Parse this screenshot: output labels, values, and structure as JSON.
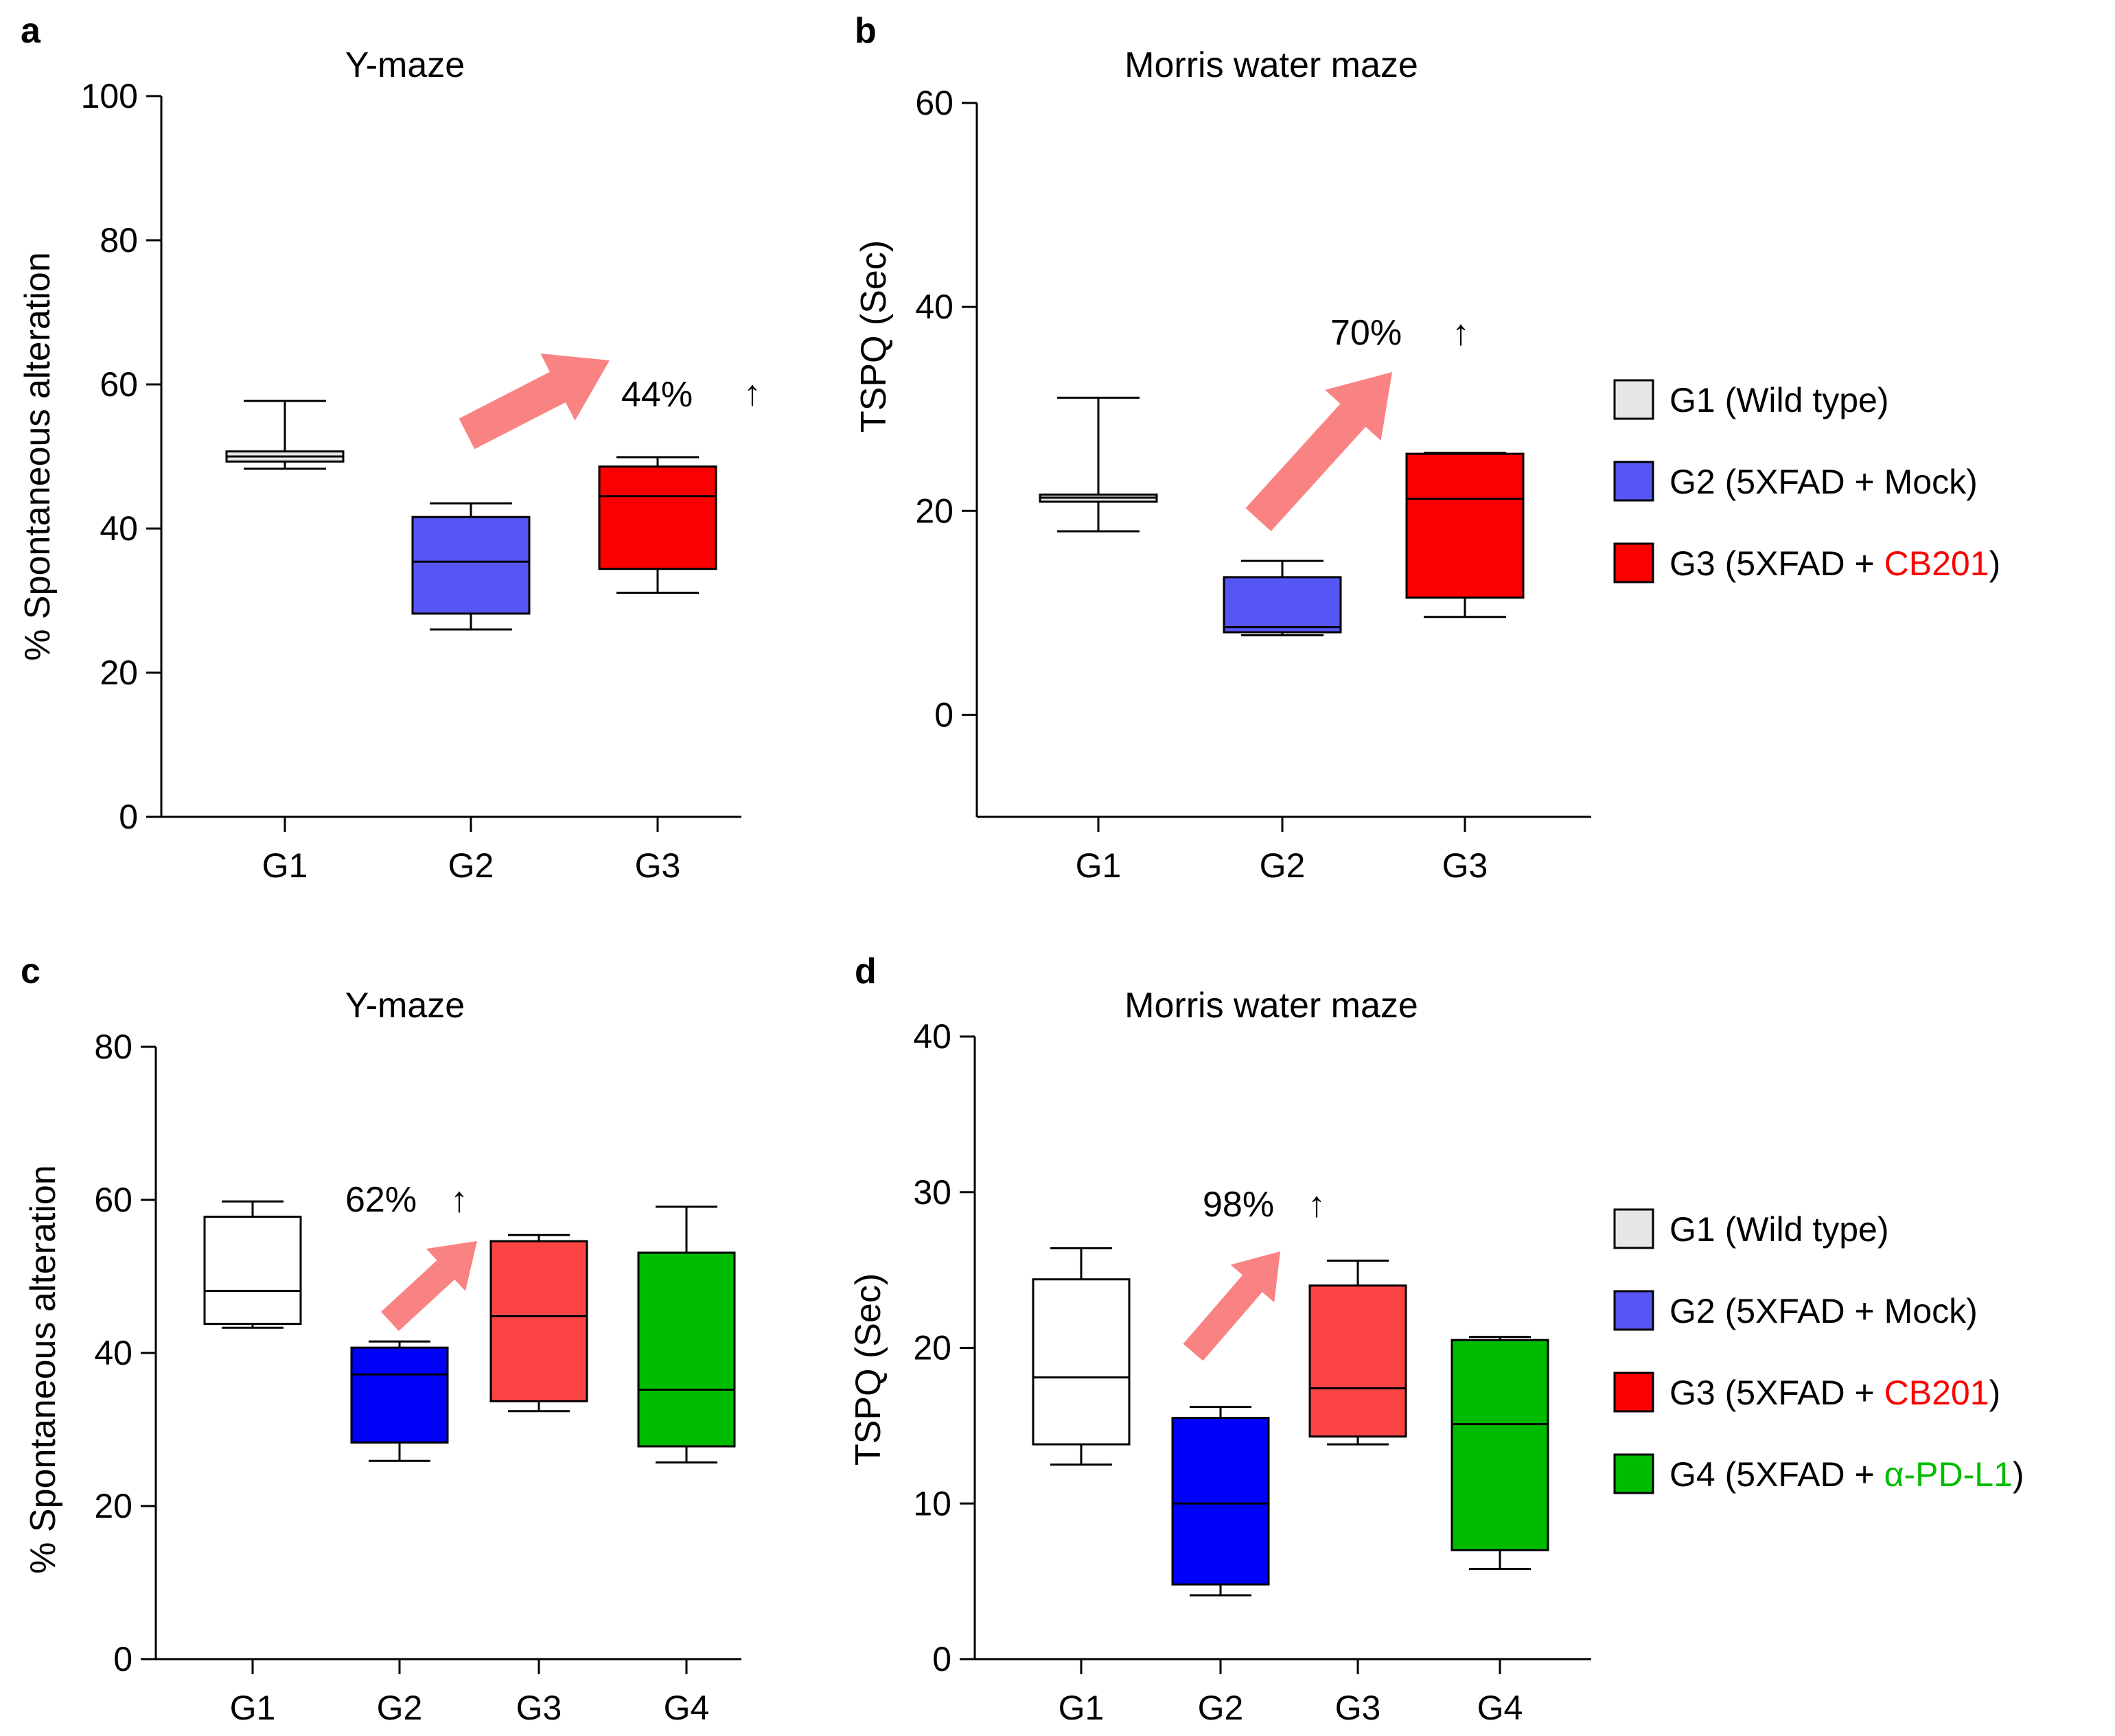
{
  "chart_data": [
    {
      "panel": "a",
      "type": "box",
      "title": "Y-maze",
      "xlabel": "",
      "ylabel": "% Spontaneous alteration",
      "ylim": [
        0,
        100
      ],
      "yticks": [
        0,
        20,
        40,
        60,
        80,
        100
      ],
      "categories": [
        "G1",
        "G2",
        "G3"
      ],
      "boxes": [
        {
          "category": "G1",
          "min": 48.3,
          "q1": 49.3,
          "median": 50.0,
          "q3": 50.7,
          "max": 57.7,
          "color": "#e6e6e6"
        },
        {
          "category": "G2",
          "min": 26.0,
          "q1": 28.2,
          "median": 35.4,
          "q3": 41.6,
          "max": 43.5,
          "color": "#5656f5"
        },
        {
          "category": "G3",
          "min": 31.1,
          "q1": 34.4,
          "median": 44.5,
          "q3": 48.6,
          "max": 49.9,
          "color": "#fb0000"
        }
      ],
      "annotation": {
        "text": "44%",
        "arrow": "↑"
      },
      "trend_arrow_color": "#f98383"
    },
    {
      "panel": "b",
      "type": "box",
      "title": "Morris water maze",
      "xlabel": "",
      "ylabel": "TSPQ (Sec)",
      "ylim": [
        -10,
        60
      ],
      "yticks": [
        0,
        20,
        40,
        60
      ],
      "categories": [
        "G1",
        "G2",
        "G3"
      ],
      "boxes": [
        {
          "category": "G1",
          "min": 18.0,
          "q1": 20.9,
          "median": 21.3,
          "q3": 21.6,
          "max": 31.1,
          "color": "#e6e6e6"
        },
        {
          "category": "G2",
          "min": 7.8,
          "q1": 8.1,
          "median": 8.6,
          "q3": 13.5,
          "max": 15.1,
          "color": "#5656f5"
        },
        {
          "category": "G3",
          "min": 9.6,
          "q1": 11.5,
          "median": 21.2,
          "q3": 25.6,
          "max": 25.7,
          "color": "#fb0000"
        }
      ],
      "annotation": {
        "text": "70%",
        "arrow": "↑"
      },
      "trend_arrow_color": "#f98383"
    },
    {
      "panel": "c",
      "type": "box",
      "title": "Y-maze",
      "xlabel": "",
      "ylabel": "% Spontaneous alteration",
      "ylim": [
        0,
        80
      ],
      "yticks": [
        0,
        20,
        40,
        60,
        80
      ],
      "categories": [
        "G1",
        "G2",
        "G3",
        "G4"
      ],
      "boxes": [
        {
          "category": "G1",
          "min": 43.3,
          "q1": 43.8,
          "median": 48.1,
          "q3": 57.8,
          "max": 59.8,
          "color": "#ffffff"
        },
        {
          "category": "G2",
          "min": 25.9,
          "q1": 28.3,
          "median": 37.2,
          "q3": 40.7,
          "max": 41.5,
          "color": "#0000fb"
        },
        {
          "category": "G3",
          "min": 32.4,
          "q1": 33.7,
          "median": 44.8,
          "q3": 54.6,
          "max": 55.4,
          "color": "#fc4444"
        },
        {
          "category": "G4",
          "min": 25.7,
          "q1": 27.8,
          "median": 35.2,
          "q3": 53.1,
          "max": 59.1,
          "color": "#00bc00"
        }
      ],
      "annotation": {
        "text": "62%",
        "arrow": "↑"
      },
      "trend_arrow_color": "#f98383"
    },
    {
      "panel": "d",
      "type": "box",
      "title": "Morris water maze",
      "xlabel": "",
      "ylabel": "TSPQ (Sec)",
      "ylim": [
        0,
        40
      ],
      "yticks": [
        0,
        10,
        20,
        30,
        40
      ],
      "categories": [
        "G1",
        "G2",
        "G3",
        "G4"
      ],
      "boxes": [
        {
          "category": "G1",
          "min": 12.5,
          "q1": 13.8,
          "median": 18.1,
          "q3": 24.4,
          "max": 26.4,
          "color": "#ffffff"
        },
        {
          "category": "G2",
          "min": 4.1,
          "q1": 4.8,
          "median": 10.0,
          "q3": 15.5,
          "max": 16.2,
          "color": "#0000fb"
        },
        {
          "category": "G3",
          "min": 13.8,
          "q1": 14.3,
          "median": 17.4,
          "q3": 24.0,
          "max": 25.6,
          "color": "#fc4444"
        },
        {
          "category": "G4",
          "min": 5.8,
          "q1": 7.0,
          "median": 15.1,
          "q3": 20.5,
          "max": 20.7,
          "color": "#00bc00"
        }
      ],
      "annotation": {
        "text": "98%",
        "arrow": "↑"
      },
      "trend_arrow_color": "#f98383"
    }
  ],
  "legends": [
    {
      "placement": "right-of-panel-b",
      "entries": [
        {
          "prefix": "G1 (Wild type)",
          "highlight": "",
          "suffix": "",
          "swatch": "#e6e6e6",
          "highlight_color": "#000000"
        },
        {
          "prefix": "G2 (5XFAD + Mock)",
          "highlight": "",
          "suffix": "",
          "swatch": "#5656f5",
          "highlight_color": "#000000"
        },
        {
          "prefix": "G3 (5XFAD + ",
          "highlight": "CB201",
          "suffix": ")",
          "swatch": "#fb0000",
          "highlight_color": "#fb0000"
        }
      ]
    },
    {
      "placement": "right-of-panel-d",
      "entries": [
        {
          "prefix": "G1 (Wild type)",
          "highlight": "",
          "suffix": "",
          "swatch": "#e6e6e6",
          "highlight_color": "#000000"
        },
        {
          "prefix": "G2 (5XFAD + Mock)",
          "highlight": "",
          "suffix": "",
          "swatch": "#5656f5",
          "highlight_color": "#000000"
        },
        {
          "prefix": "G3 (5XFAD + ",
          "highlight": "CB201",
          "suffix": ")",
          "swatch": "#fb0000",
          "highlight_color": "#fb0000"
        },
        {
          "prefix": "G4 (5XFAD + ",
          "highlight": "α-PD-L1",
          "suffix": ")",
          "swatch": "#00bc00",
          "highlight_color": "#00bc00"
        }
      ]
    }
  ]
}
